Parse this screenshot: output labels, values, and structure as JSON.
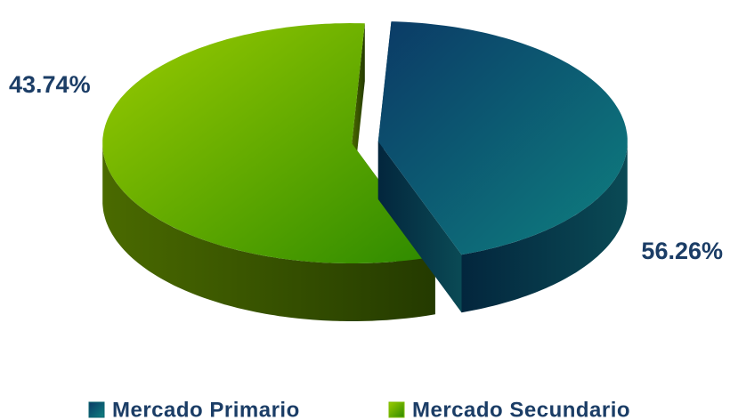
{
  "chart_data": {
    "type": "pie",
    "categories": [
      "Mercado Primario",
      "Mercado Secundario"
    ],
    "values": [
      43.74,
      56.26
    ],
    "value_labels": [
      "43.74%",
      "56.26%"
    ],
    "colors": [
      "#0e6470",
      "#7cba00"
    ],
    "legend": "bottom"
  }
}
